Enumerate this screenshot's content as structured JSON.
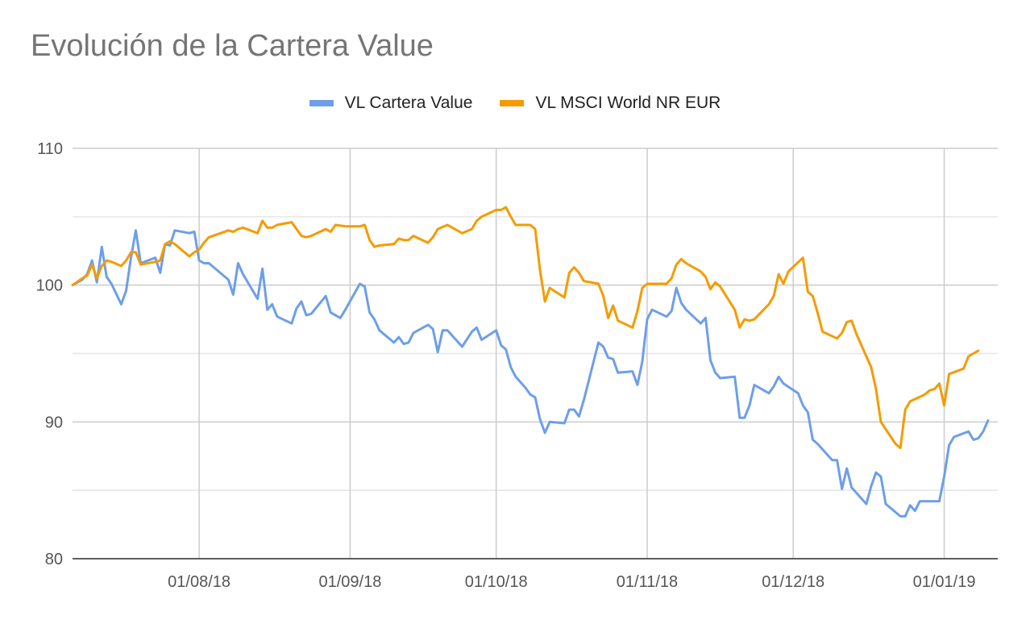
{
  "chart_data": {
    "type": "line",
    "title": "Evolución de la Cartera Value",
    "xlabel": "",
    "ylabel": "",
    "ylim": [
      80,
      110
    ],
    "y_ticks": [
      80,
      90,
      100,
      110
    ],
    "x_range": [
      0,
      190
    ],
    "x_ticks": [
      {
        "label": "01/08/18",
        "x": 26
      },
      {
        "label": "01/09/18",
        "x": 57
      },
      {
        "label": "01/10/18",
        "x": 87
      },
      {
        "label": "01/11/18",
        "x": 118
      },
      {
        "label": "01/12/18",
        "x": 148
      },
      {
        "label": "01/01/19",
        "x": 179
      }
    ],
    "legend_position": "top-center",
    "series": [
      {
        "name": "VL Cartera Value",
        "color": "#6d9eeb",
        "points": [
          [
            0,
            100.0
          ],
          [
            2,
            100.4
          ],
          [
            3,
            100.8
          ],
          [
            4,
            101.8
          ],
          [
            5,
            100.2
          ],
          [
            6,
            102.8
          ],
          [
            7,
            100.6
          ],
          [
            8,
            100.1
          ],
          [
            10,
            98.6
          ],
          [
            11,
            99.6
          ],
          [
            12,
            102.0
          ],
          [
            13,
            104.0
          ],
          [
            14,
            101.6
          ],
          [
            17,
            102.0
          ],
          [
            18,
            100.9
          ],
          [
            19,
            103.0
          ],
          [
            20,
            102.9
          ],
          [
            21,
            104.0
          ],
          [
            24,
            103.8
          ],
          [
            25,
            103.9
          ],
          [
            26,
            101.8
          ],
          [
            27,
            101.6
          ],
          [
            28,
            101.6
          ],
          [
            32,
            100.4
          ],
          [
            33,
            99.3
          ],
          [
            34,
            101.6
          ],
          [
            35,
            100.8
          ],
          [
            38,
            99.0
          ],
          [
            39,
            101.2
          ],
          [
            40,
            98.2
          ],
          [
            41,
            98.6
          ],
          [
            42,
            97.7
          ],
          [
            45,
            97.2
          ],
          [
            46,
            98.3
          ],
          [
            47,
            98.8
          ],
          [
            48,
            97.8
          ],
          [
            49,
            97.9
          ],
          [
            52,
            99.2
          ],
          [
            53,
            98.0
          ],
          [
            55,
            97.6
          ],
          [
            56,
            98.2
          ],
          [
            59,
            100.1
          ],
          [
            60,
            99.9
          ],
          [
            61,
            98.0
          ],
          [
            62,
            97.5
          ],
          [
            63,
            96.7
          ],
          [
            66,
            95.8
          ],
          [
            67,
            96.2
          ],
          [
            68,
            95.7
          ],
          [
            69,
            95.8
          ],
          [
            70,
            96.5
          ],
          [
            73,
            97.1
          ],
          [
            74,
            96.8
          ],
          [
            75,
            95.1
          ],
          [
            76,
            96.7
          ],
          [
            77,
            96.7
          ],
          [
            80,
            95.5
          ],
          [
            82,
            96.6
          ],
          [
            83,
            96.9
          ],
          [
            84,
            96.0
          ],
          [
            87,
            96.7
          ],
          [
            88,
            95.6
          ],
          [
            89,
            95.3
          ],
          [
            90,
            94.0
          ],
          [
            91,
            93.3
          ],
          [
            93,
            92.5
          ],
          [
            94,
            92.0
          ],
          [
            95,
            91.8
          ],
          [
            96,
            90.2
          ],
          [
            97,
            89.2
          ],
          [
            98,
            90.0
          ],
          [
            101,
            89.9
          ],
          [
            102,
            90.9
          ],
          [
            103,
            90.9
          ],
          [
            104,
            90.4
          ],
          [
            105,
            91.6
          ],
          [
            108,
            95.8
          ],
          [
            109,
            95.5
          ],
          [
            110,
            94.7
          ],
          [
            111,
            94.6
          ],
          [
            112,
            93.6
          ],
          [
            115,
            93.7
          ],
          [
            116,
            92.7
          ],
          [
            117,
            94.4
          ],
          [
            118,
            97.5
          ],
          [
            119,
            98.2
          ],
          [
            122,
            97.7
          ],
          [
            123,
            98.1
          ],
          [
            124,
            99.8
          ],
          [
            125,
            98.7
          ],
          [
            126,
            98.2
          ],
          [
            129,
            97.2
          ],
          [
            130,
            97.6
          ],
          [
            131,
            94.5
          ],
          [
            132,
            93.6
          ],
          [
            133,
            93.2
          ],
          [
            136,
            93.3
          ],
          [
            137,
            90.3
          ],
          [
            138,
            90.3
          ],
          [
            139,
            91.2
          ],
          [
            140,
            92.7
          ],
          [
            143,
            92.1
          ],
          [
            144,
            92.6
          ],
          [
            145,
            93.3
          ],
          [
            146,
            92.8
          ],
          [
            149,
            92.1
          ],
          [
            150,
            91.2
          ],
          [
            151,
            90.7
          ],
          [
            152,
            88.7
          ],
          [
            153,
            88.4
          ],
          [
            156,
            87.2
          ],
          [
            157,
            87.2
          ],
          [
            158,
            85.1
          ],
          [
            159,
            86.6
          ],
          [
            160,
            85.2
          ],
          [
            163,
            84.0
          ],
          [
            164,
            85.3
          ],
          [
            165,
            86.3
          ],
          [
            166,
            86.0
          ],
          [
            167,
            84.0
          ],
          [
            170,
            83.1
          ],
          [
            171,
            83.1
          ],
          [
            172,
            83.9
          ],
          [
            173,
            83.5
          ],
          [
            174,
            84.2
          ],
          [
            177,
            84.2
          ],
          [
            178,
            84.2
          ],
          [
            179,
            86.0
          ],
          [
            180,
            88.3
          ],
          [
            181,
            88.9
          ],
          [
            184,
            89.3
          ],
          [
            185,
            88.7
          ],
          [
            186,
            88.8
          ],
          [
            187,
            89.3
          ],
          [
            188,
            90.1
          ]
        ]
      },
      {
        "name": "VL MSCI World NR EUR",
        "color": "#f59b00",
        "points": [
          [
            0,
            100.0
          ],
          [
            2,
            100.5
          ],
          [
            3,
            100.7
          ],
          [
            4,
            101.5
          ],
          [
            5,
            100.5
          ],
          [
            6,
            101.4
          ],
          [
            7,
            101.8
          ],
          [
            8,
            101.7
          ],
          [
            10,
            101.4
          ],
          [
            11,
            101.8
          ],
          [
            12,
            102.4
          ],
          [
            13,
            102.4
          ],
          [
            14,
            101.5
          ],
          [
            17,
            101.7
          ],
          [
            18,
            101.8
          ],
          [
            19,
            103.0
          ],
          [
            20,
            103.2
          ],
          [
            21,
            103.0
          ],
          [
            24,
            102.1
          ],
          [
            25,
            102.4
          ],
          [
            26,
            102.6
          ],
          [
            27,
            103.1
          ],
          [
            28,
            103.5
          ],
          [
            32,
            104.0
          ],
          [
            33,
            103.9
          ],
          [
            34,
            104.1
          ],
          [
            35,
            104.2
          ],
          [
            38,
            103.8
          ],
          [
            39,
            104.7
          ],
          [
            40,
            104.2
          ],
          [
            41,
            104.2
          ],
          [
            42,
            104.4
          ],
          [
            45,
            104.6
          ],
          [
            46,
            104.1
          ],
          [
            47,
            103.6
          ],
          [
            48,
            103.5
          ],
          [
            49,
            103.6
          ],
          [
            52,
            104.1
          ],
          [
            53,
            103.9
          ],
          [
            54,
            104.4
          ],
          [
            56,
            104.3
          ],
          [
            59,
            104.3
          ],
          [
            60,
            104.4
          ],
          [
            61,
            103.3
          ],
          [
            62,
            102.8
          ],
          [
            63,
            102.9
          ],
          [
            66,
            103.0
          ],
          [
            67,
            103.4
          ],
          [
            68,
            103.3
          ],
          [
            69,
            103.3
          ],
          [
            70,
            103.6
          ],
          [
            73,
            103.1
          ],
          [
            74,
            103.5
          ],
          [
            75,
            104.1
          ],
          [
            77,
            104.4
          ],
          [
            80,
            103.8
          ],
          [
            82,
            104.1
          ],
          [
            83,
            104.7
          ],
          [
            84,
            105.0
          ],
          [
            87,
            105.5
          ],
          [
            88,
            105.5
          ],
          [
            89,
            105.7
          ],
          [
            90,
            105.0
          ],
          [
            91,
            104.4
          ],
          [
            94,
            104.4
          ],
          [
            95,
            104.1
          ],
          [
            96,
            101.1
          ],
          [
            97,
            98.8
          ],
          [
            98,
            99.8
          ],
          [
            101,
            99.1
          ],
          [
            102,
            100.9
          ],
          [
            103,
            101.3
          ],
          [
            104,
            100.9
          ],
          [
            105,
            100.3
          ],
          [
            108,
            100.1
          ],
          [
            109,
            99.2
          ],
          [
            110,
            97.6
          ],
          [
            111,
            98.5
          ],
          [
            112,
            97.4
          ],
          [
            115,
            96.9
          ],
          [
            116,
            98.1
          ],
          [
            117,
            99.8
          ],
          [
            118,
            100.1
          ],
          [
            122,
            100.1
          ],
          [
            123,
            100.5
          ],
          [
            124,
            101.5
          ],
          [
            125,
            101.9
          ],
          [
            126,
            101.6
          ],
          [
            129,
            101.0
          ],
          [
            130,
            100.6
          ],
          [
            131,
            99.7
          ],
          [
            132,
            100.2
          ],
          [
            133,
            99.9
          ],
          [
            136,
            98.2
          ],
          [
            137,
            96.9
          ],
          [
            138,
            97.5
          ],
          [
            139,
            97.4
          ],
          [
            140,
            97.5
          ],
          [
            143,
            98.6
          ],
          [
            144,
            99.2
          ],
          [
            145,
            100.8
          ],
          [
            146,
            100.1
          ],
          [
            147,
            101.0
          ],
          [
            150,
            102.0
          ],
          [
            151,
            99.5
          ],
          [
            152,
            99.2
          ],
          [
            153,
            98.0
          ],
          [
            154,
            96.6
          ],
          [
            157,
            96.1
          ],
          [
            158,
            96.5
          ],
          [
            159,
            97.3
          ],
          [
            160,
            97.4
          ],
          [
            161,
            96.4
          ],
          [
            164,
            94.0
          ],
          [
            165,
            92.4
          ],
          [
            166,
            90.0
          ],
          [
            169,
            88.4
          ],
          [
            170,
            88.1
          ],
          [
            171,
            90.9
          ],
          [
            172,
            91.5
          ],
          [
            175,
            92.0
          ],
          [
            176,
            92.3
          ],
          [
            177,
            92.4
          ],
          [
            178,
            92.8
          ],
          [
            179,
            91.2
          ],
          [
            180,
            93.5
          ],
          [
            183,
            93.9
          ],
          [
            184,
            94.8
          ],
          [
            185,
            95.0
          ],
          [
            186,
            95.2
          ]
        ]
      }
    ]
  }
}
